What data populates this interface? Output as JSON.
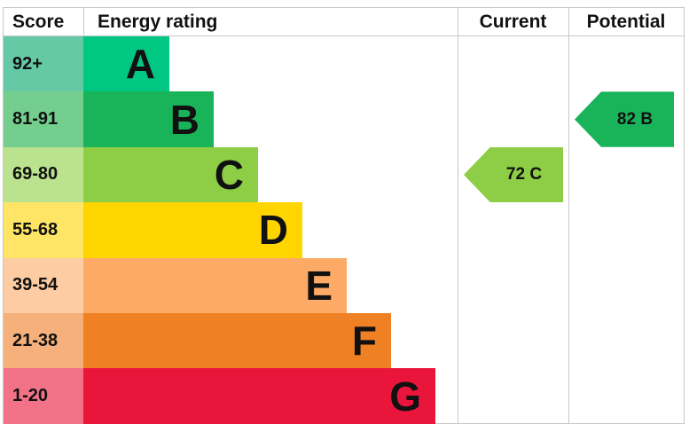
{
  "chart_data": {
    "type": "table",
    "headers": {
      "score": "Score",
      "rating": "Energy rating",
      "current": "Current",
      "potential": "Potential"
    },
    "bands": [
      {
        "score": "92+",
        "letter": "A",
        "color": "#00c781",
        "score_color": "#66c9a5"
      },
      {
        "score": "81-91",
        "letter": "B",
        "color": "#19b459",
        "score_color": "#74cf8f"
      },
      {
        "score": "69-80",
        "letter": "C",
        "color": "#8dce46",
        "score_color": "#bbe28e"
      },
      {
        "score": "55-68",
        "letter": "D",
        "color": "#ffd500",
        "score_color": "#ffe566"
      },
      {
        "score": "39-54",
        "letter": "E",
        "color": "#fcaa65",
        "score_color": "#fdcca3"
      },
      {
        "score": "21-38",
        "letter": "F",
        "color": "#ef8023",
        "score_color": "#f5b07b"
      },
      {
        "score": "1-20",
        "letter": "G",
        "color": "#e9153b",
        "score_color": "#f27388"
      }
    ],
    "current": {
      "value": 72,
      "letter": "C",
      "label": "72  C",
      "color": "#8dce46"
    },
    "potential": {
      "value": 82,
      "letter": "B",
      "label": "82  B",
      "color": "#19b459"
    }
  }
}
